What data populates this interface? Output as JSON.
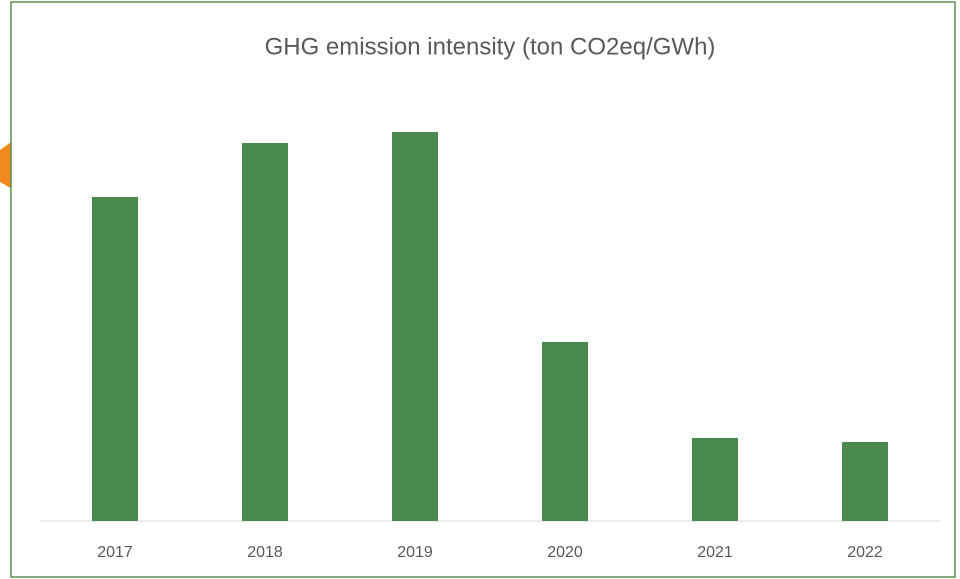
{
  "chart_data": {
    "type": "bar",
    "title": "GHG emission intensity (ton CO2eq/GWh)",
    "categories": [
      "2017",
      "2018",
      "2019",
      "2020",
      "2021",
      "2022"
    ],
    "values": [
      324,
      378,
      389,
      179,
      83,
      79
    ],
    "color": "#4a8a4f",
    "ylim": [
      0,
      400
    ]
  }
}
